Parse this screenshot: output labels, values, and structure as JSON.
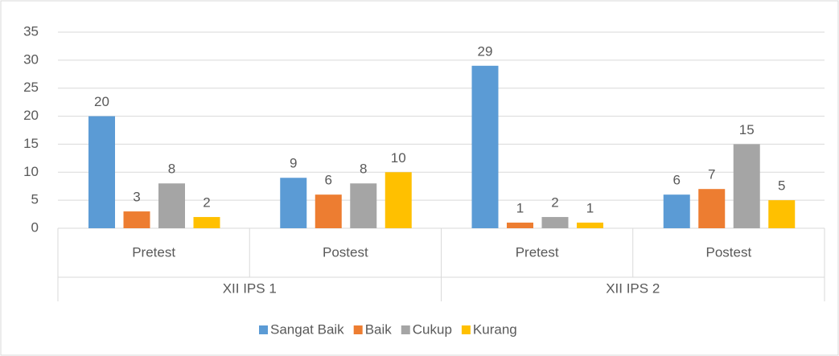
{
  "chart_data": {
    "type": "bar",
    "categories": [
      "Pretest",
      "Postest",
      "Pretest",
      "Postest"
    ],
    "group_labels": [
      "XII IPS 1",
      "XII IPS 2"
    ],
    "series": [
      {
        "name": "Sangat Baik",
        "color": "#5b9bd5",
        "values": [
          20,
          9,
          29,
          6
        ]
      },
      {
        "name": "Baik",
        "color": "#ed7d31",
        "values": [
          3,
          6,
          1,
          7
        ]
      },
      {
        "name": "Cukup",
        "color": "#a5a5a5",
        "values": [
          8,
          8,
          2,
          15
        ]
      },
      {
        "name": "Kurang",
        "color": "#ffc000",
        "values": [
          2,
          10,
          1,
          5
        ]
      }
    ],
    "ylim": [
      0,
      35
    ],
    "yticks": [
      0,
      5,
      10,
      15,
      20,
      25,
      30,
      35
    ],
    "grid": true,
    "legend": "bottom"
  }
}
